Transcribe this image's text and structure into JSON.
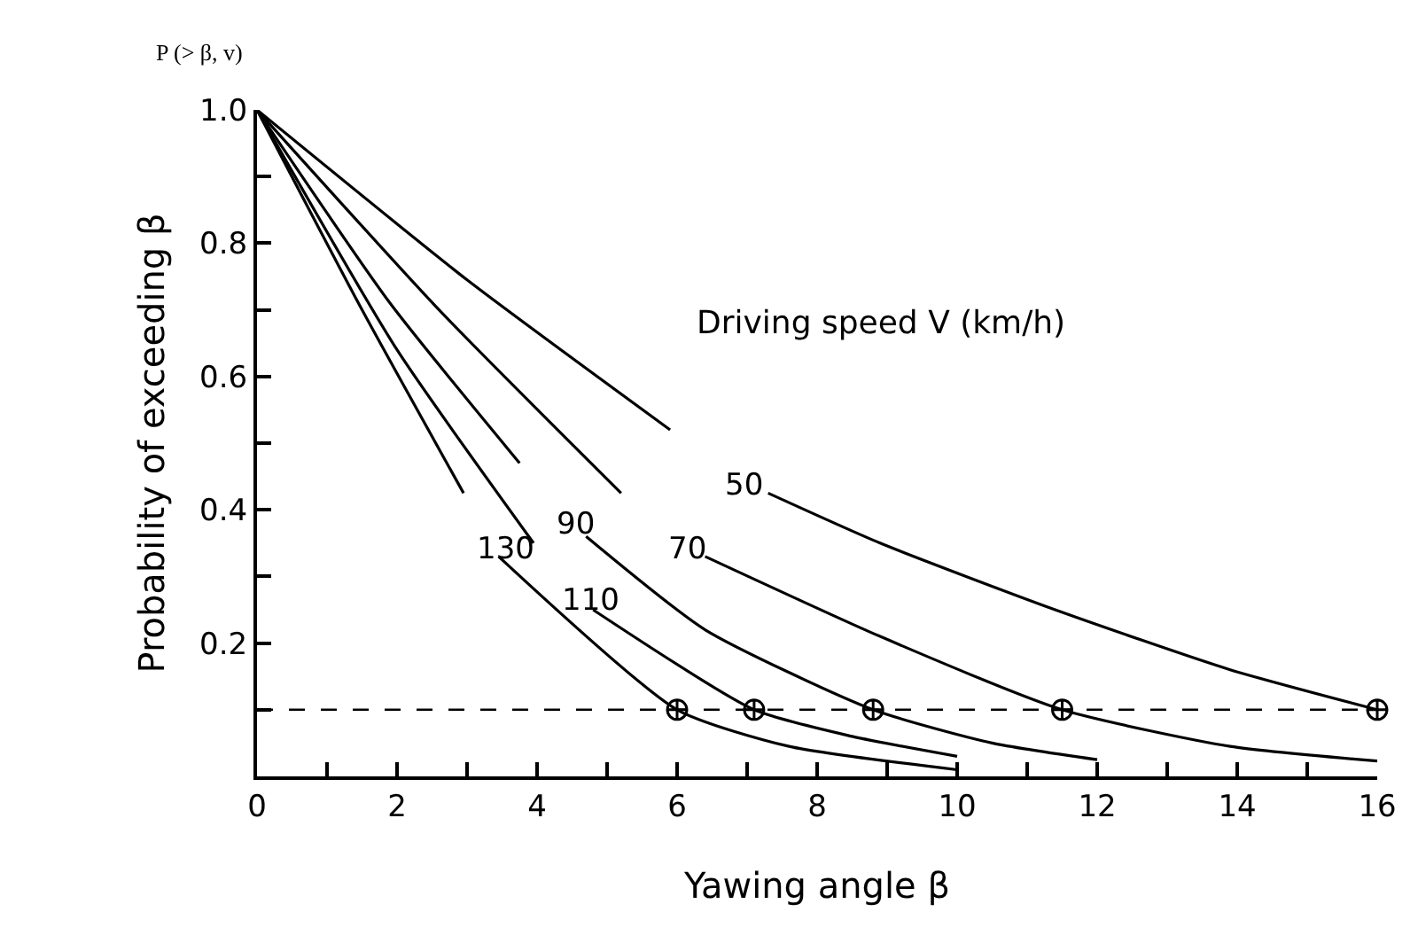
{
  "chart_data": {
    "type": "line",
    "xlabel": "Yawing angle β",
    "ylabel": "Probability of exceeding β",
    "annotations": [
      "P (> β, v)",
      "Driving speed V (km/h)"
    ],
    "xlim": [
      0,
      16
    ],
    "ylim": [
      0,
      1.0
    ],
    "xticks": [
      0,
      {
        "value": 1,
        "label": null
      },
      2,
      {
        "value": 3,
        "label": null
      },
      4,
      {
        "value": 5,
        "label": null
      },
      6,
      {
        "value": 7,
        "label": null
      },
      8,
      {
        "value": 9,
        "label": null
      },
      10,
      {
        "value": 11,
        "label": null
      },
      12,
      {
        "value": 13,
        "label": null
      },
      14,
      {
        "value": 15,
        "label": null
      },
      16
    ],
    "yticks": [
      {
        "value": 0.1,
        "label": null
      },
      {
        "value": 0.2,
        "label": "0.2"
      },
      {
        "value": 0.3,
        "label": null
      },
      {
        "value": 0.4,
        "label": "0.4"
      },
      {
        "value": 0.5,
        "label": null
      },
      {
        "value": 0.6,
        "label": "0.6"
      },
      {
        "value": 0.7,
        "label": null
      },
      {
        "value": 0.8,
        "label": "0.8"
      },
      {
        "value": 0.9,
        "label": null
      },
      {
        "value": 1.0,
        "label": "1.0"
      }
    ],
    "grid": false,
    "legend": false,
    "marker": "none",
    "line_style": "solid",
    "series": [
      {
        "name": "50",
        "color": "#000000",
        "x": [
          0,
          3,
          5.9,
          6.6,
          7.3,
          8.9,
          11.4,
          13.9,
          16
        ],
        "values": [
          1.0,
          0.745,
          0.52,
          null,
          0.425,
          0.35,
          0.25,
          0.16,
          0.1
        ]
      },
      {
        "name": "70",
        "color": "#000000",
        "x": [
          0,
          2.6,
          5.2,
          5.8,
          6.4,
          8.9,
          11.5,
          13.9,
          16
        ],
        "values": [
          1.0,
          0.7,
          0.425,
          null,
          0.33,
          0.21,
          0.1,
          0.045,
          0.023
        ]
      },
      {
        "name": "90",
        "color": "#000000",
        "x": [
          0,
          1.9,
          3.75,
          4.2,
          4.7,
          6.4,
          8.8,
          10.5,
          12
        ],
        "values": [
          1.0,
          0.71,
          0.47,
          null,
          0.36,
          0.22,
          0.1,
          0.05,
          0.025
        ]
      },
      {
        "name": "110",
        "color": "#000000",
        "x": [
          0,
          2,
          3.95,
          4.4,
          4.8,
          7.1,
          8.5,
          10
        ],
        "values": [
          1.0,
          0.64,
          0.35,
          null,
          0.25,
          0.1,
          0.06,
          0.03
        ]
      },
      {
        "name": "130",
        "color": "#000000",
        "x": [
          0,
          1.5,
          2.95,
          3.2,
          3.45,
          6,
          7.6,
          10
        ],
        "values": [
          1.0,
          0.7,
          0.425,
          null,
          0.33,
          0.1,
          0.045,
          0.01
        ]
      },
      {
        "type": "scatter",
        "marker": "cross",
        "color": "#000000",
        "x": [
          6,
          7.1,
          8.8,
          11.5,
          16
        ],
        "values": [
          0.1,
          0.1,
          0.1,
          0.1,
          0.1
        ]
      }
    ],
    "ref_lines": [
      {
        "axis": "y",
        "value": 0.1,
        "color": "#000000",
        "line_style": "dashed"
      }
    ]
  }
}
